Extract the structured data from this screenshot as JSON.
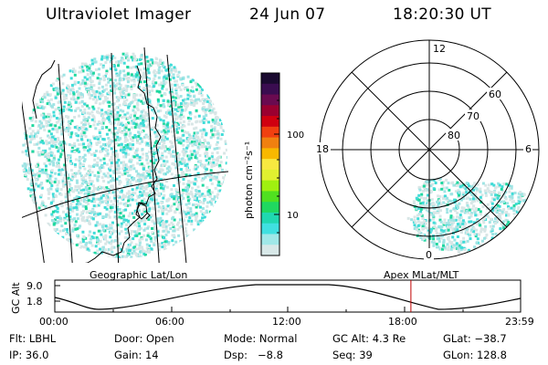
{
  "header": {
    "title": "Ultraviolet Imager",
    "date": "24 Jun 07",
    "time": "18:20:30 UT"
  },
  "colorbar": {
    "label": "photon cm⁻²s⁻¹",
    "ticks": [
      "100",
      "10"
    ],
    "colors_top_to_bottom": [
      "#1a0a30",
      "#3a0c50",
      "#6a0a50",
      "#9a0030",
      "#d00010",
      "#f04010",
      "#f08010",
      "#f8b800",
      "#f8e840",
      "#e0f030",
      "#a0f010",
      "#50e020",
      "#20d860",
      "#20d8b0",
      "#40e0e0",
      "#a0e8e8",
      "#d8e8e8"
    ]
  },
  "geo_panel": {
    "label": "Geographic Lat/Lon"
  },
  "polar_panel": {
    "label": "Apex MLat/MLT",
    "mlt_labels": [
      "12",
      "18",
      "6",
      "0"
    ],
    "lat_labels": [
      "60",
      "70",
      "80"
    ]
  },
  "altitude_plot": {
    "ylabel": "GC Alt",
    "yticks": [
      "9.0",
      "1.8"
    ],
    "xticks": [
      "00:00",
      "06:00",
      "12:00",
      "18:00",
      "23:59"
    ],
    "marker_time": "18:20",
    "marker_color": "#c00000"
  },
  "footer": {
    "row1": [
      "Flt: LBHL",
      "Door: Open",
      "Mode: Normal",
      "GC Alt: 4.3 Re",
      "GLat: −38.7"
    ],
    "row2": [
      "IP: 36.0",
      "Gain: 14",
      "Dsp:   −8.8",
      "Seq: 39",
      "GLon: 128.8"
    ]
  }
}
